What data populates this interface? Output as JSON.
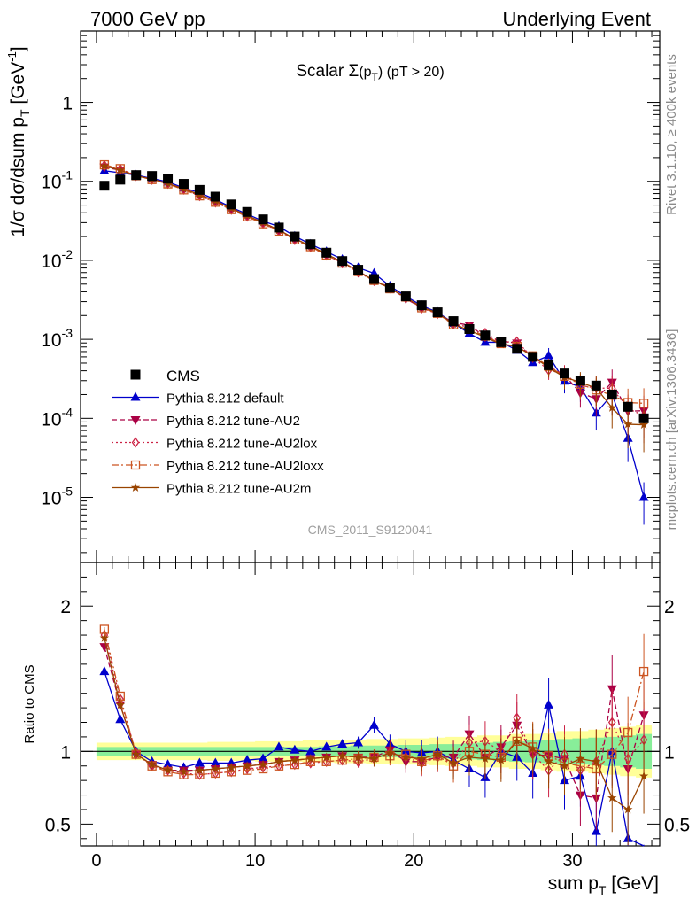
{
  "header": {
    "left": "7000 GeV pp",
    "right": "Underlying Event"
  },
  "side": {
    "rivet": "Rivet 3.1.10, ≥ 400k events",
    "mcplots": "mcplots.cern.ch [arXiv:1306.3436]"
  },
  "chart_data": {
    "type": "line",
    "title": "Scalar Σ(p_T) (pT > 20)",
    "title_main": "Scalar Σ",
    "title_arg": "(p",
    "title_sub": "T",
    "title_rest": ") (pT > 20)",
    "analysis_id": "CMS_2011_S9120041",
    "xlabel_main": "sum p",
    "xlabel_sub": "T",
    "xlabel_unit": " [GeV]",
    "ylabel_main": "1/σ dσ/dsum p",
    "ylabel_sub": "T",
    "ylabel_unit_pre": " [GeV",
    "ylabel_unit_sup": "-1",
    "ylabel_unit_post": "]",
    "ratio_ylabel": "Ratio to CMS",
    "xlim": [
      -1,
      35.5
    ],
    "ylim_log": [
      1.5e-06,
      8
    ],
    "ratio_ylim": [
      0.35,
      2.3
    ],
    "y_scale": "log",
    "x_ticks": [
      0,
      10,
      20,
      30
    ],
    "x_tick_labels": [
      "0",
      "10",
      "20",
      "30"
    ],
    "y_ticks": [
      {
        "value": 1,
        "base": "1",
        "exp": ""
      },
      {
        "value": 0.1,
        "base": "10",
        "exp": "-1"
      },
      {
        "value": 0.01,
        "base": "10",
        "exp": "-2"
      },
      {
        "value": 0.001,
        "base": "10",
        "exp": "-3"
      },
      {
        "value": 0.0001,
        "base": "10",
        "exp": "-4"
      },
      {
        "value": 1e-05,
        "base": "10",
        "exp": "-5"
      }
    ],
    "ratio_ticks": [
      0.5,
      1,
      2
    ],
    "ratio_tick_labels": [
      "0.5",
      "1",
      "2"
    ],
    "legend_position": "bottom-left",
    "x": [
      0.5,
      1.5,
      2.5,
      3.5,
      4.5,
      5.5,
      6.5,
      7.5,
      8.5,
      9.5,
      10.5,
      11.5,
      12.5,
      13.5,
      14.5,
      15.5,
      16.5,
      17.5,
      18.5,
      19.5,
      20.5,
      21.5,
      22.5,
      23.5,
      24.5,
      25.5,
      26.5,
      27.5,
      28.5,
      29.5,
      30.5,
      31.5,
      32.5,
      33.5,
      34.5
    ],
    "data": {
      "name": "CMS",
      "color": "#000000",
      "values": [
        0.088,
        0.105,
        0.12,
        0.117,
        0.108,
        0.093,
        0.078,
        0.064,
        0.051,
        0.041,
        0.033,
        0.026,
        0.02,
        0.016,
        0.0125,
        0.0098,
        0.0076,
        0.0058,
        0.0045,
        0.0035,
        0.0027,
        0.0022,
        0.0017,
        0.00135,
        0.00112,
        0.00092,
        0.00076,
        0.0006,
        0.00047,
        0.00037,
        0.0003,
        0.00026,
        0.0002,
        0.00014,
        0.0001
      ]
    },
    "series": [
      {
        "name": "Pythia 8.212 default",
        "color": "#0000cc",
        "marker": "triangle-up",
        "dash": "",
        "ratio": [
          1.55,
          1.22,
          1.0,
          0.93,
          0.91,
          0.89,
          0.92,
          0.92,
          0.92,
          0.94,
          0.95,
          1.03,
          1.01,
          1.0,
          1.03,
          1.05,
          1.06,
          1.18,
          1.05,
          1.0,
          0.99,
          1.0,
          0.94,
          0.88,
          0.82,
          1.0,
          0.96,
          0.85,
          1.32,
          0.8,
          0.83,
          0.45,
          1.0,
          0.4,
          0.1
        ]
      },
      {
        "name": "Pythia 8.212 tune-AU2",
        "color": "#aa0044",
        "marker": "triangle-down",
        "dash": "6,3",
        "ratio": [
          1.72,
          1.32,
          0.98,
          0.91,
          0.87,
          0.87,
          0.87,
          0.88,
          0.89,
          0.9,
          0.91,
          0.93,
          0.94,
          0.95,
          0.96,
          0.97,
          0.96,
          0.96,
          1.01,
          0.93,
          0.93,
          0.96,
          0.96,
          1.12,
          0.96,
          1.03,
          1.18,
          0.98,
          0.97,
          0.95,
          0.7,
          0.68,
          1.43,
          0.88,
          1.25
        ]
      },
      {
        "name": "Pythia 8.212 tune-AU2lox",
        "color": "#cc2244",
        "marker": "diamond",
        "dash": "2,3",
        "ratio": [
          1.8,
          1.36,
          0.99,
          0.9,
          0.87,
          0.85,
          0.84,
          0.85,
          0.86,
          0.88,
          0.89,
          0.9,
          0.91,
          0.92,
          0.93,
          0.94,
          0.93,
          0.95,
          0.99,
          0.96,
          0.92,
          0.96,
          0.92,
          1.06,
          1.07,
          1.0,
          1.23,
          0.98,
          0.87,
          0.98,
          0.87,
          0.93,
          1.2,
          0.95,
          1.08
        ]
      },
      {
        "name": "Pythia 8.212 tune-AU2loxx",
        "color": "#cc5522",
        "marker": "square-open",
        "dash": "8,3,2,3",
        "ratio": [
          1.84,
          1.38,
          0.98,
          0.9,
          0.86,
          0.84,
          0.84,
          0.85,
          0.86,
          0.87,
          0.88,
          0.9,
          0.91,
          0.93,
          0.93,
          0.94,
          0.95,
          0.96,
          0.97,
          0.98,
          0.93,
          0.97,
          0.9,
          1.0,
          0.98,
          0.96,
          1.07,
          1.03,
          0.97,
          0.92,
          0.9,
          0.88,
          0.98,
          1.13,
          1.55
        ]
      },
      {
        "name": "Pythia 8.212 tune-AU2m",
        "color": "#994400",
        "marker": "star",
        "dash": "",
        "ratio": [
          1.78,
          1.32,
          0.98,
          0.91,
          0.87,
          0.86,
          0.87,
          0.88,
          0.89,
          0.9,
          0.91,
          0.93,
          0.94,
          0.95,
          0.96,
          0.97,
          0.96,
          0.95,
          0.99,
          0.96,
          0.95,
          0.98,
          0.92,
          0.96,
          0.95,
          0.94,
          1.07,
          1.02,
          0.93,
          0.9,
          0.95,
          0.93,
          0.68,
          0.6,
          0.83
        ]
      }
    ],
    "band_stat": [
      0.03,
      0.03,
      0.03,
      0.03,
      0.03,
      0.03,
      0.03,
      0.03,
      0.03,
      0.03,
      0.03,
      0.03,
      0.03,
      0.03,
      0.035,
      0.035,
      0.04,
      0.04,
      0.04,
      0.045,
      0.045,
      0.05,
      0.05,
      0.055,
      0.06,
      0.065,
      0.07,
      0.075,
      0.08,
      0.085,
      0.09,
      0.095,
      0.1,
      0.11,
      0.12
    ],
    "band_total": [
      0.06,
      0.06,
      0.06,
      0.06,
      0.06,
      0.06,
      0.06,
      0.065,
      0.065,
      0.065,
      0.07,
      0.07,
      0.07,
      0.075,
      0.075,
      0.08,
      0.08,
      0.085,
      0.085,
      0.09,
      0.09,
      0.095,
      0.1,
      0.1,
      0.11,
      0.11,
      0.12,
      0.12,
      0.13,
      0.14,
      0.14,
      0.15,
      0.16,
      0.17,
      0.18
    ]
  }
}
